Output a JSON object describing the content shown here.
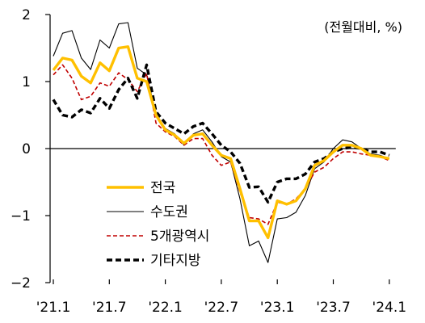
{
  "chart_data": {
    "type": "line",
    "unit_label": "(전월대비, %)",
    "ylim": [
      -2,
      2
    ],
    "y_ticks": [
      "2",
      "1",
      "0",
      "−1",
      "−2"
    ],
    "y_tick_values": [
      2,
      1,
      0,
      -1,
      -2
    ],
    "x_tick_labels": [
      "'21.1",
      "'21.7",
      "'22.1",
      "'22.7",
      "'23.1",
      "'23.7",
      "'24.1"
    ],
    "x_tick_index": [
      0,
      6,
      12,
      18,
      24,
      30,
      36
    ],
    "x": [
      "'21.1",
      "'21.2",
      "'21.3",
      "'21.4",
      "'21.5",
      "'21.6",
      "'21.7",
      "'21.8",
      "'21.9",
      "'21.10",
      "'21.11",
      "'21.12",
      "'22.1",
      "'22.2",
      "'22.3",
      "'22.4",
      "'22.5",
      "'22.6",
      "'22.7",
      "'22.8",
      "'22.9",
      "'22.10",
      "'22.11",
      "'22.12",
      "'23.1",
      "'23.2",
      "'23.3",
      "'23.4",
      "'23.5",
      "'23.6",
      "'23.7",
      "'23.8",
      "'23.9",
      "'23.10",
      "'23.11",
      "'23.12",
      "'24.1"
    ],
    "grid": false,
    "legend_position": "left-middle",
    "series": [
      {
        "name": "전국",
        "color": "#FFC000",
        "stroke": "solid-thick",
        "values": [
          1.17,
          1.35,
          1.32,
          1.08,
          0.98,
          1.28,
          1.16,
          1.5,
          1.52,
          1.05,
          1.0,
          0.5,
          0.28,
          0.2,
          0.08,
          0.2,
          0.22,
          0.05,
          -0.1,
          -0.15,
          -0.6,
          -1.08,
          -1.08,
          -1.33,
          -0.78,
          -0.83,
          -0.78,
          -0.6,
          -0.25,
          -0.18,
          -0.05,
          0.05,
          0.05,
          0.0,
          -0.1,
          -0.12,
          -0.15
        ]
      },
      {
        "name": "수도권",
        "color": "#000000",
        "stroke": "solid-thin",
        "values": [
          1.38,
          1.72,
          1.76,
          1.35,
          1.18,
          1.62,
          1.5,
          1.86,
          1.88,
          1.2,
          1.1,
          0.52,
          0.3,
          0.22,
          0.05,
          0.22,
          0.28,
          0.1,
          -0.12,
          -0.2,
          -0.75,
          -1.45,
          -1.38,
          -1.7,
          -1.05,
          -1.03,
          -0.95,
          -0.7,
          -0.3,
          -0.2,
          0.0,
          0.13,
          0.1,
          0.0,
          -0.08,
          -0.1,
          -0.15
        ]
      },
      {
        "name": "5개광역시",
        "color": "#C00000",
        "stroke": "dashed-thin",
        "values": [
          1.1,
          1.25,
          1.05,
          0.73,
          0.78,
          0.98,
          0.93,
          1.13,
          1.03,
          0.85,
          1.12,
          0.38,
          0.25,
          0.18,
          0.05,
          0.15,
          0.15,
          -0.1,
          -0.25,
          -0.2,
          -0.65,
          -1.03,
          -1.05,
          -1.13,
          -0.8,
          -0.83,
          -0.75,
          -0.6,
          -0.35,
          -0.28,
          -0.15,
          -0.05,
          -0.05,
          -0.08,
          -0.1,
          -0.12,
          -0.18
        ]
      },
      {
        "name": "기타지방",
        "color": "#000000",
        "stroke": "dashed-thick",
        "values": [
          0.73,
          0.5,
          0.47,
          0.58,
          0.53,
          0.75,
          0.6,
          0.88,
          1.05,
          0.75,
          1.25,
          0.55,
          0.38,
          0.3,
          0.22,
          0.33,
          0.38,
          0.22,
          0.05,
          -0.05,
          -0.22,
          -0.58,
          -0.57,
          -0.8,
          -0.5,
          -0.45,
          -0.45,
          -0.38,
          -0.2,
          -0.15,
          -0.05,
          0.0,
          0.02,
          0.0,
          -0.05,
          -0.05,
          -0.1
        ]
      }
    ]
  }
}
